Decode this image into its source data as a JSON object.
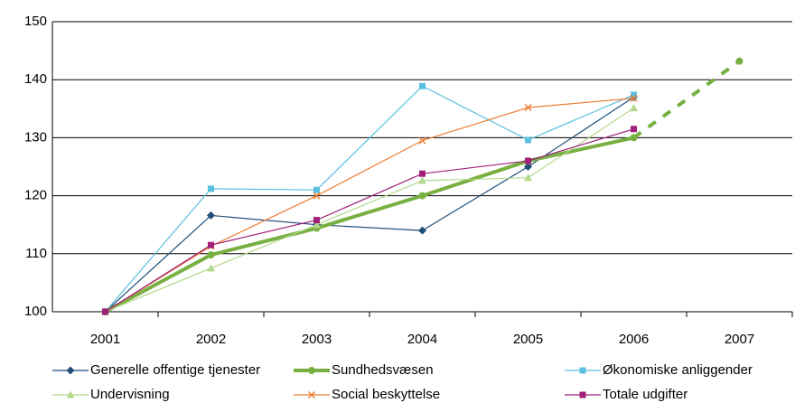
{
  "chart_data": {
    "type": "line",
    "categories": [
      "2001",
      "2002",
      "2003",
      "2004",
      "2005",
      "2006",
      "2007"
    ],
    "ylim": [
      100,
      150
    ],
    "yticks": [
      100,
      110,
      120,
      130,
      140,
      150
    ],
    "grid": true,
    "series": [
      {
        "name": "Generelle offentige tjenester",
        "color": "#1f4e79",
        "marker": "diamond",
        "width": 1.2,
        "values": [
          100,
          116.6,
          115,
          114,
          125,
          137,
          null
        ]
      },
      {
        "name": "Sundhedsvæsen",
        "color": "#77b041",
        "marker": "circle",
        "width": 4,
        "dashed_from_index": 5,
        "values": [
          100,
          109.8,
          114.4,
          120,
          126,
          130,
          143.2
        ]
      },
      {
        "name": "Økonomiske anliggender",
        "color": "#5bc0de",
        "marker": "square",
        "width": 1.2,
        "values": [
          100,
          121.2,
          121,
          138.9,
          129.6,
          137.4,
          null
        ]
      },
      {
        "name": "Undervisning",
        "color": "#b3d88b",
        "marker": "triangle",
        "width": 1.2,
        "values": [
          100,
          107.5,
          115,
          122.6,
          123.1,
          135.1,
          null
        ]
      },
      {
        "name": "Social beskyttelse",
        "color": "#ed7d31",
        "marker": "x",
        "width": 1.2,
        "values": [
          100,
          111.3,
          120,
          129.5,
          135.2,
          136.8,
          null
        ]
      },
      {
        "name": "Totale udgifter",
        "color": "#a0207a",
        "marker": "square",
        "width": 1.2,
        "values": [
          100,
          111.5,
          115.8,
          123.8,
          126,
          131.5,
          null
        ]
      }
    ]
  }
}
